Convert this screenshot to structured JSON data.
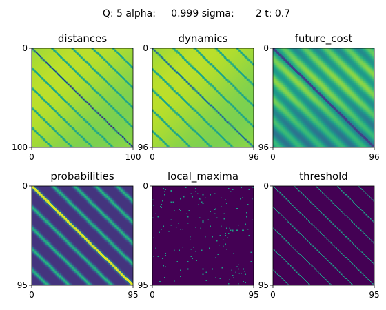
{
  "figure": {
    "suptitle": "Q: 5 alpha:     0.999 sigma:       2 t: 0.7"
  },
  "chart_data": [
    {
      "type": "heatmap",
      "title": "distances",
      "colormap": "viridis",
      "size": 100,
      "xticks": [
        "0",
        "100"
      ],
      "yticks": [
        "0",
        "100"
      ],
      "pattern": "smooth",
      "description_values": {
        "diagonal": 0.1,
        "background": 0.85,
        "stripe_period": 20,
        "stripe_level": 0.55
      }
    },
    {
      "type": "heatmap",
      "title": "dynamics",
      "colormap": "viridis",
      "size": 96,
      "xticks": [
        "0",
        "96"
      ],
      "yticks": [
        "0",
        "96"
      ],
      "pattern": "smooth",
      "description_values": {
        "diagonal": 0.25,
        "background": 0.85,
        "stripe_period": 20,
        "stripe_level": 0.55
      }
    },
    {
      "type": "heatmap",
      "title": "future_cost",
      "colormap": "viridis",
      "size": 96,
      "xticks": [
        "0",
        "96"
      ],
      "yticks": [
        "0",
        "96"
      ],
      "pattern": "banded",
      "description_values": {
        "diagonal": 0.2,
        "background": 0.75,
        "stripe_period": 20,
        "stripe_level": 0.3
      }
    },
    {
      "type": "heatmap",
      "title": "probabilities",
      "colormap": "viridis",
      "size": 95,
      "xticks": [
        "0",
        "95"
      ],
      "yticks": [
        "0",
        "95"
      ],
      "pattern": "peaks",
      "description_values": {
        "diagonal": 0.95,
        "background": 0.15,
        "stripe_period": 20,
        "stripe_level": 0.65
      }
    },
    {
      "type": "heatmap",
      "title": "local_maxima",
      "colormap": "viridis",
      "size": 95,
      "xticks": [
        "0",
        "95"
      ],
      "yticks": [
        "0",
        "95"
      ],
      "pattern": "binary_noisy",
      "description_values": {
        "background": 0,
        "marked": 0.55,
        "stripe_period": 20
      }
    },
    {
      "type": "heatmap",
      "title": "threshold",
      "colormap": "viridis",
      "size": 95,
      "xticks": [
        "0",
        "95"
      ],
      "yticks": [
        "0",
        "95"
      ],
      "pattern": "binary_clean",
      "description_values": {
        "background": 0,
        "marked": 0.55,
        "stripe_period": 20
      }
    }
  ]
}
